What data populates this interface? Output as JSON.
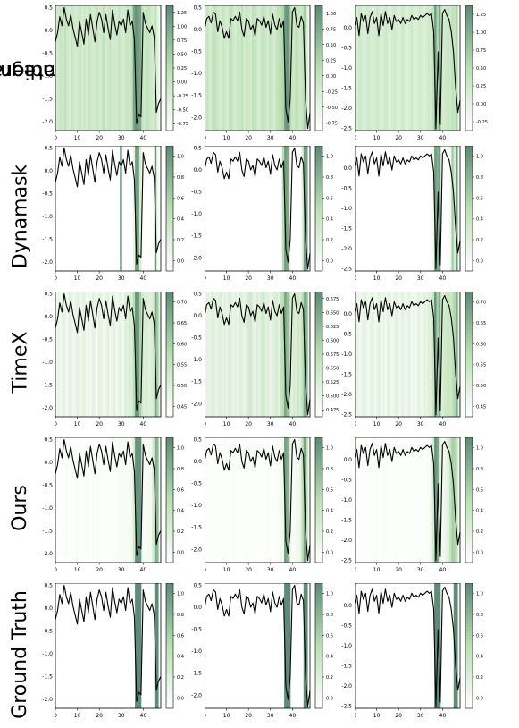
{
  "row_labels": [
    {
      "line1": "Integrated",
      "line2": "Gradients"
    },
    {
      "line1": "Dynamask",
      "line2": ""
    },
    {
      "line1": "TimeX",
      "line2": ""
    },
    {
      "line1": "Ours",
      "line2": ""
    },
    {
      "line1": "Ground Truth",
      "line2": ""
    }
  ],
  "colors": {
    "line": "#000000",
    "cmap_low": "#ffffff",
    "cmap_mid": "#b9dfb2",
    "cmap_high": "#5f8c78"
  },
  "chart_data": {
    "type": "line",
    "description_of_grid": "5 rows (methods) x 3 columns (samples); each panel: black time series over a green saliency heatmap with a colorbar",
    "x_ticks": [
      "0",
      "10",
      "20",
      "30",
      "40"
    ],
    "series": [
      {
        "sample": 1,
        "x": [
          0,
          1,
          2,
          3,
          4,
          5,
          6,
          7,
          8,
          9,
          10,
          11,
          12,
          13,
          14,
          15,
          16,
          17,
          18,
          19,
          20,
          21,
          22,
          23,
          24,
          25,
          26,
          27,
          28,
          29,
          30,
          31,
          32,
          33,
          34,
          35,
          36,
          37,
          38,
          39,
          40,
          41,
          42,
          43,
          44,
          45,
          46,
          47,
          48
        ],
        "y": [
          -0.25,
          -0.05,
          0.3,
          0.1,
          0.5,
          0.25,
          0.1,
          0.35,
          0.05,
          -0.15,
          -0.35,
          0.2,
          -0.05,
          -0.3,
          0.25,
          -0.1,
          0.35,
          0.05,
          -0.25,
          0.2,
          0.4,
          0.25,
          -0.05,
          0.35,
          0.05,
          -0.2,
          0.45,
          0.15,
          -0.1,
          0.2,
          0.1,
          0.25,
          -0.05,
          0.45,
          0.1,
          0.2,
          -0.2,
          -2.05,
          -1.85,
          -1.9,
          0.4,
          0.15,
          0.05,
          -0.05,
          0.1,
          -0.15,
          -1.8,
          -1.6,
          -1.5
        ],
        "ylim": [
          -2.2,
          0.55
        ],
        "y_ticks": [
          -2.0,
          -1.5,
          -1.0,
          -0.5,
          0.0,
          0.5
        ]
      },
      {
        "sample": 2,
        "x": [
          0,
          1,
          2,
          3,
          4,
          5,
          6,
          7,
          8,
          9,
          10,
          11,
          12,
          13,
          14,
          15,
          16,
          17,
          18,
          19,
          20,
          21,
          22,
          23,
          24,
          25,
          26,
          27,
          28,
          29,
          30,
          31,
          32,
          33,
          34,
          35,
          36,
          37,
          38,
          39,
          40,
          41,
          42,
          43,
          44,
          45,
          46,
          47,
          48
        ],
        "y": [
          0.0,
          0.25,
          0.3,
          0.15,
          0.4,
          0.35,
          -0.05,
          0.2,
          0.05,
          -0.2,
          -0.05,
          -0.2,
          0.25,
          0.2,
          0.3,
          0.2,
          0.4,
          0.0,
          -0.15,
          0.25,
          0.2,
          0.0,
          0.1,
          -0.15,
          0.25,
          0.2,
          0.1,
          0.3,
          0.05,
          0.2,
          -0.1,
          0.35,
          0.1,
          0.0,
          0.25,
          0.05,
          0.2,
          -1.8,
          -2.1,
          -1.6,
          0.4,
          0.5,
          0.1,
          0.05,
          0.3,
          0.15,
          -1.6,
          -2.25,
          -1.9
        ],
        "ylim": [
          -2.3,
          0.55
        ],
        "y_ticks": [
          -2.0,
          -1.5,
          -1.0,
          -0.5,
          0.0,
          0.5
        ]
      },
      {
        "sample": 3,
        "x": [
          0,
          1,
          2,
          3,
          4,
          5,
          6,
          7,
          8,
          9,
          10,
          11,
          12,
          13,
          14,
          15,
          16,
          17,
          18,
          19,
          20,
          21,
          22,
          23,
          24,
          25,
          26,
          27,
          28,
          29,
          30,
          31,
          32,
          33,
          34,
          35,
          36,
          37,
          38,
          39,
          40,
          41,
          42,
          43,
          44,
          45,
          46,
          47,
          48
        ],
        "y": [
          0.05,
          0.25,
          -0.2,
          0.35,
          0.15,
          0.3,
          -0.15,
          0.25,
          0.4,
          0.1,
          0.25,
          -0.2,
          0.35,
          0.05,
          0.4,
          0.1,
          0.25,
          -0.05,
          0.3,
          0.15,
          0.2,
          0.1,
          0.25,
          0.1,
          0.2,
          0.15,
          0.3,
          0.2,
          0.25,
          0.2,
          0.3,
          0.25,
          0.3,
          0.35,
          0.3,
          0.35,
          -0.1,
          -2.5,
          -0.6,
          -2.4,
          0.35,
          0.45,
          0.3,
          0.2,
          -0.1,
          -0.6,
          -1.5,
          -2.1,
          -1.8
        ],
        "ylim": [
          -2.55,
          0.55
        ],
        "y_ticks": [
          -2.5,
          -2.0,
          -1.5,
          -1.0,
          -0.5,
          0.0
        ]
      }
    ],
    "panels": [
      [
        {
          "colorbar_ticks": [
            "1.25",
            "1.00",
            "0.75",
            "0.50",
            "0.25",
            "0.00",
            "-0.25",
            "-0.50",
            "-0.75"
          ],
          "saliency": "ig1"
        },
        {
          "colorbar_ticks": [
            "1.00",
            "0.75",
            "0.50",
            "0.25",
            "0.00",
            "-0.25",
            "-0.50",
            "-0.75"
          ],
          "saliency": "ig2"
        },
        {
          "colorbar_ticks": [
            "1.25",
            "1.00",
            "0.75",
            "0.50",
            "0.25",
            "0.00",
            "-0.25"
          ],
          "saliency": "ig3"
        }
      ],
      [
        {
          "colorbar_ticks": [
            "1.0",
            "0.8",
            "0.6",
            "0.4",
            "0.2",
            "0.0"
          ],
          "saliency": "dm1"
        },
        {
          "colorbar_ticks": [
            "1.0",
            "0.8",
            "0.6",
            "0.4",
            "0.2",
            "0.0"
          ],
          "saliency": "dm2"
        },
        {
          "colorbar_ticks": [
            "1.0",
            "0.8",
            "0.6",
            "0.4",
            "0.2",
            "0.0"
          ],
          "saliency": "dm3"
        }
      ],
      [
        {
          "colorbar_ticks": [
            "0.70",
            "0.65",
            "0.60",
            "0.55",
            "0.50",
            "0.45"
          ],
          "saliency": "tx1"
        },
        {
          "colorbar_ticks": [
            "0.675",
            "0.650",
            "0.625",
            "0.600",
            "0.575",
            "0.550",
            "0.525",
            "0.500",
            "0.475"
          ],
          "saliency": "tx2"
        },
        {
          "colorbar_ticks": [
            "0.70",
            "0.65",
            "0.60",
            "0.55",
            "0.50",
            "0.45"
          ],
          "saliency": "tx3"
        }
      ],
      [
        {
          "colorbar_ticks": [
            "1.0",
            "0.8",
            "0.6",
            "0.4",
            "0.2",
            "0.0"
          ],
          "saliency": "ours1"
        },
        {
          "colorbar_ticks": [
            "1.0",
            "0.8",
            "0.6",
            "0.4",
            "0.2",
            "0.0"
          ],
          "saliency": "ours2"
        },
        {
          "colorbar_ticks": [
            "1.0",
            "0.8",
            "0.6",
            "0.4",
            "0.2",
            "0.0"
          ],
          "saliency": "ours3"
        }
      ],
      [
        {
          "colorbar_ticks": [
            "1.0",
            "0.8",
            "0.6",
            "0.4",
            "0.2",
            "0.0"
          ],
          "saliency": "gt1"
        },
        {
          "colorbar_ticks": [
            "1.0",
            "0.8",
            "0.6",
            "0.4",
            "0.2",
            "0.0"
          ],
          "saliency": "gt2"
        },
        {
          "colorbar_ticks": [
            "1.0",
            "0.8",
            "0.6",
            "0.4",
            "0.2",
            "0.0"
          ],
          "saliency": "gt3"
        }
      ]
    ],
    "saliency_maps": {
      "ig1": [
        0.3,
        0.35,
        0.4,
        0.3,
        0.45,
        0.35,
        0.3,
        0.4,
        0.35,
        0.3,
        0.35,
        0.4,
        0.3,
        0.35,
        0.3,
        0.4,
        0.35,
        0.3,
        0.35,
        0.4,
        0.3,
        0.35,
        0.45,
        0.3,
        0.35,
        0.4,
        0.3,
        0.35,
        0.3,
        0.4,
        0.35,
        0.3,
        0.35,
        0.4,
        0.35,
        0.45,
        0.85,
        0.95,
        0.9,
        0.85,
        0.4,
        0.35,
        0.45,
        0.4,
        0.35,
        0.3,
        0.5,
        0.2,
        0.1
      ],
      "ig2": [
        0.35,
        0.4,
        0.3,
        0.35,
        0.45,
        0.4,
        0.35,
        0.3,
        0.4,
        0.35,
        0.3,
        0.4,
        0.45,
        0.35,
        0.3,
        0.4,
        0.35,
        0.45,
        0.3,
        0.4,
        0.35,
        0.3,
        0.45,
        0.4,
        0.35,
        0.3,
        0.4,
        0.45,
        0.35,
        0.3,
        0.4,
        0.35,
        0.3,
        0.4,
        0.45,
        0.5,
        0.55,
        0.9,
        0.95,
        0.7,
        0.4,
        0.35,
        0.45,
        0.4,
        0.35,
        0.4,
        0.6,
        0.3,
        0.1
      ],
      "ig3": [
        0.25,
        0.3,
        0.35,
        0.3,
        0.25,
        0.3,
        0.35,
        0.3,
        0.25,
        0.3,
        0.35,
        0.3,
        0.25,
        0.3,
        0.35,
        0.3,
        0.25,
        0.3,
        0.35,
        0.3,
        0.25,
        0.3,
        0.35,
        0.3,
        0.25,
        0.3,
        0.35,
        0.3,
        0.25,
        0.3,
        0.35,
        0.3,
        0.25,
        0.3,
        0.35,
        0.3,
        0.45,
        0.9,
        0.55,
        0.85,
        0.35,
        0.3,
        0.35,
        0.4,
        0.35,
        0.45,
        0.4,
        0.55,
        0.1
      ],
      "dm1": [
        0,
        0,
        0,
        0,
        0,
        0,
        0,
        0,
        0,
        0,
        0,
        0,
        0,
        0,
        0,
        0,
        0,
        0,
        0,
        0,
        0,
        0,
        0,
        0,
        0,
        0,
        0,
        0,
        0,
        0,
        0.95,
        0,
        0,
        0,
        0,
        0,
        0.15,
        0.9,
        0.85,
        0.3,
        0.05,
        0,
        0,
        0,
        0,
        0,
        0.95,
        0.1,
        0
      ],
      "dm2": [
        0,
        0,
        0,
        0,
        0,
        0,
        0,
        0,
        0,
        0,
        0,
        0,
        0,
        0,
        0,
        0,
        0,
        0,
        0,
        0,
        0,
        0,
        0,
        0,
        0,
        0,
        0,
        0,
        0,
        0,
        0,
        0,
        0,
        0,
        0,
        0,
        0.5,
        0.9,
        0.85,
        0.2,
        0,
        0,
        0,
        0,
        0,
        0.2,
        0.9,
        0.85,
        0
      ],
      "dm3": [
        0,
        0,
        0,
        0,
        0,
        0,
        0,
        0,
        0,
        0,
        0,
        0,
        0,
        0,
        0,
        0,
        0,
        0,
        0,
        0,
        0,
        0,
        0,
        0,
        0,
        0,
        0,
        0,
        0,
        0,
        0,
        0,
        0,
        0,
        0,
        0,
        0.1,
        0.9,
        0.8,
        0.9,
        0,
        0,
        0,
        0,
        0.1,
        0.6,
        0.3,
        0.9,
        0
      ],
      "tx1": [
        0.1,
        0.15,
        0.1,
        0.2,
        0.15,
        0.1,
        0.2,
        0.15,
        0.1,
        0.15,
        0.2,
        0.1,
        0.15,
        0.2,
        0.1,
        0.15,
        0.1,
        0.2,
        0.15,
        0.1,
        0.2,
        0.15,
        0.1,
        0.15,
        0.2,
        0.1,
        0.15,
        0.2,
        0.1,
        0.15,
        0.2,
        0.1,
        0.25,
        0.2,
        0.3,
        0.25,
        0.5,
        0.95,
        0.9,
        0.6,
        0.3,
        0.25,
        0.3,
        0.2,
        0.25,
        0.3,
        0.85,
        0.6,
        0.2
      ],
      "tx2": [
        0.15,
        0.2,
        0.15,
        0.25,
        0.2,
        0.15,
        0.2,
        0.25,
        0.15,
        0.2,
        0.15,
        0.25,
        0.2,
        0.15,
        0.2,
        0.15,
        0.25,
        0.2,
        0.15,
        0.2,
        0.3,
        0.35,
        0.2,
        0.15,
        0.25,
        0.2,
        0.3,
        0.35,
        0.2,
        0.25,
        0.15,
        0.2,
        0.25,
        0.3,
        0.2,
        0.4,
        0.5,
        0.85,
        0.7,
        0.45,
        0.2,
        0.3,
        0.25,
        0.35,
        0.3,
        0.45,
        0.8,
        0.75,
        0.2
      ],
      "tx3": [
        0.1,
        0.15,
        0.1,
        0.15,
        0.2,
        0.15,
        0.1,
        0.15,
        0.2,
        0.1,
        0.15,
        0.2,
        0.1,
        0.15,
        0.1,
        0.2,
        0.15,
        0.1,
        0.15,
        0.2,
        0.1,
        0.15,
        0.2,
        0.1,
        0.15,
        0.2,
        0.1,
        0.15,
        0.1,
        0.2,
        0.15,
        0.1,
        0.2,
        0.15,
        0.25,
        0.2,
        0.4,
        0.95,
        0.6,
        0.8,
        0.25,
        0.3,
        0.35,
        0.4,
        0.35,
        0.45,
        0.55,
        0.8,
        0.2
      ],
      "ours1": [
        0.02,
        0.03,
        0.02,
        0.03,
        0.02,
        0.03,
        0.02,
        0.03,
        0.02,
        0.03,
        0.02,
        0.03,
        0.02,
        0.03,
        0.02,
        0.03,
        0.02,
        0.03,
        0.02,
        0.03,
        0.02,
        0.03,
        0.02,
        0.03,
        0.02,
        0.03,
        0.02,
        0.03,
        0.02,
        0.05,
        0.04,
        0.05,
        0.06,
        0.05,
        0.06,
        0.1,
        0.3,
        0.95,
        0.95,
        0.95,
        0.1,
        0.05,
        0.06,
        0.08,
        0.1,
        0.3,
        0.8,
        0.75,
        0.1
      ],
      "ours2": [
        0.02,
        0.03,
        0.02,
        0.03,
        0.02,
        0.03,
        0.02,
        0.03,
        0.02,
        0.03,
        0.02,
        0.03,
        0.02,
        0.03,
        0.02,
        0.03,
        0.02,
        0.03,
        0.02,
        0.03,
        0.02,
        0.03,
        0.02,
        0.03,
        0.02,
        0.03,
        0.02,
        0.03,
        0.02,
        0.03,
        0.02,
        0.03,
        0.02,
        0.03,
        0.05,
        0.08,
        0.1,
        0.9,
        0.8,
        0.3,
        0.05,
        0.05,
        0.08,
        0.1,
        0.15,
        0.45,
        0.85,
        0.5,
        0.1
      ],
      "ours3": [
        0.02,
        0.03,
        0.02,
        0.03,
        0.02,
        0.03,
        0.02,
        0.03,
        0.02,
        0.03,
        0.02,
        0.03,
        0.02,
        0.03,
        0.02,
        0.03,
        0.02,
        0.03,
        0.02,
        0.03,
        0.02,
        0.03,
        0.02,
        0.03,
        0.02,
        0.03,
        0.02,
        0.03,
        0.02,
        0.03,
        0.02,
        0.03,
        0.02,
        0.03,
        0.05,
        0.1,
        0.3,
        0.95,
        0.85,
        0.3,
        0.1,
        0.1,
        0.15,
        0.25,
        0.4,
        0.6,
        0.55,
        0.45,
        0.1
      ],
      "gt1": [
        0,
        0,
        0,
        0,
        0,
        0,
        0,
        0,
        0,
        0,
        0,
        0,
        0,
        0,
        0,
        0,
        0,
        0,
        0,
        0,
        0,
        0,
        0,
        0,
        0,
        0,
        0,
        0,
        0,
        0,
        0,
        0,
        0,
        0,
        0,
        0,
        0,
        1,
        1,
        1,
        0,
        0,
        0,
        0,
        0,
        0,
        1,
        1,
        0
      ],
      "gt2": [
        0,
        0,
        0,
        0,
        0,
        0,
        0,
        0,
        0,
        0,
        0,
        0,
        0,
        0,
        0,
        0,
        0,
        0,
        0,
        0,
        0,
        0,
        0,
        0,
        0,
        0,
        0,
        0,
        0,
        0,
        0,
        0,
        0,
        0,
        0,
        0,
        0,
        1,
        1,
        1,
        0,
        0,
        0,
        0,
        0,
        0,
        1,
        1,
        0
      ],
      "gt3": [
        0,
        0,
        0,
        0,
        0,
        0,
        0,
        0,
        0,
        0,
        0,
        0,
        0,
        0,
        0,
        0,
        0,
        0,
        0,
        0,
        0,
        0,
        0,
        0,
        0,
        0,
        0,
        0,
        0,
        0,
        0,
        0,
        0,
        0,
        0,
        0,
        0,
        1,
        1,
        1,
        0,
        0,
        0,
        0,
        0,
        0,
        1,
        1,
        0
      ]
    }
  }
}
